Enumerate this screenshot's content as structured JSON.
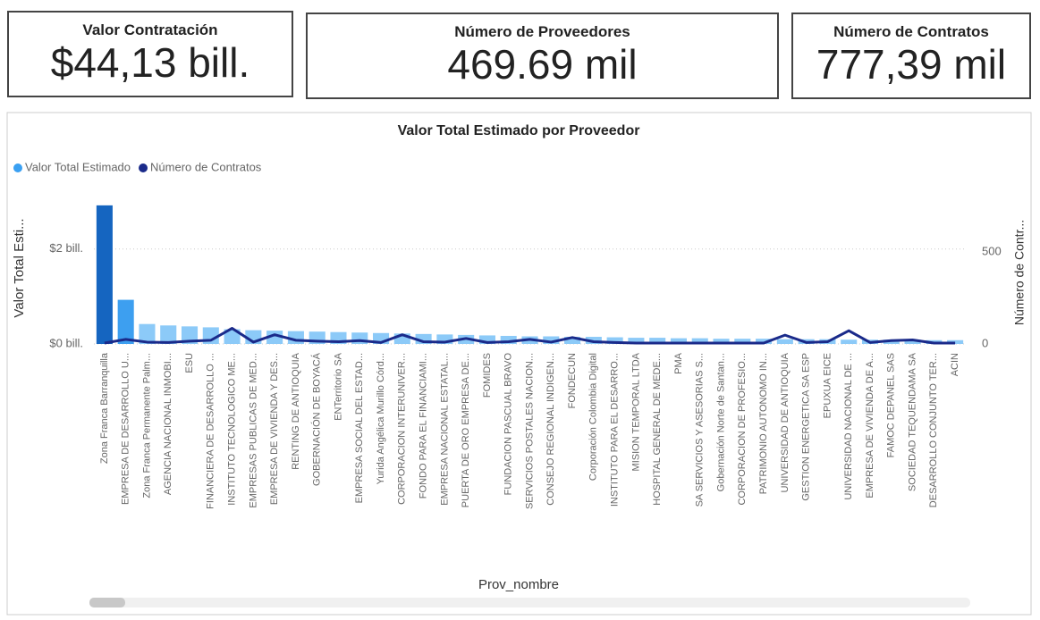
{
  "cards": [
    {
      "title": "Valor Contratación",
      "value": "$44,13 bill."
    },
    {
      "title": "Número de Proveedores",
      "value": "469.69 mil"
    },
    {
      "title": "Número de Contratos",
      "value": "777,39 mil"
    }
  ],
  "chart_data": {
    "type": "bar-line",
    "title": "Valor Total Estimado por Proveedor",
    "x_label": "Prov_nombre",
    "y_label": "Valor Total Esti...",
    "y2_label": "Número de Contr...",
    "categories": [
      "Zona Franca Barranquilla",
      "EMPRESA DE DESARROLLO U...",
      "Zona Franca Permanente Palm...",
      "AGENCIA NACIONAL INMOBI...",
      "ESU",
      "FINANCIERA DE DESARROLLO ...",
      "INSTITUTO TECNOLOGICO ME...",
      "EMPRESAS PUBLICAS DE MED...",
      "EMPRESA DE VIVIENDA Y DES...",
      "RENTING DE ANTIOQUIA",
      "GOBERNACIÓN DE BOYACÁ",
      "ENTerritorio SA",
      "EMPRESA SOCIAL DEL ESTAD...",
      "Yurida Angélica Murillo Córd...",
      "CORPORACION INTERUNIVER...",
      "FONDO PARA EL FINANCIAMI...",
      "EMPRESA NACIONAL ESTATAL...",
      "PUERTA DE ORO EMPRESA DE...",
      "FOMIDES",
      "FUNDACION PASCUAL BRAVO",
      "SERVICIOS POSTALES NACION...",
      "CONSEJO REGIONAL INDIGEN...",
      "FONDECUN",
      "Corporación Colombia Digital",
      "INSTITUTO PARA EL DESARRO...",
      "MISION TEMPORAL LTDA",
      "HOSPITAL GENERAL DE MEDE...",
      "PMA",
      "SA SERVICIOS Y ASESORIAS S...",
      "Gobernación Norte de Santan...",
      "CORPORACION DE PROFESIO...",
      "PATRIMONIO AUTONOMO IN...",
      "UNIVERSIDAD DE ANTIOQUIA",
      "GESTION ENERGETICA SA ESP",
      "EPUXUA EICE",
      "UNIVERSIDAD NACIONAL DE ...",
      "EMPRESA DE VIVIENDA DE A...",
      "FAMOC DEPANEL SAS",
      "SOCIEDAD TEQUENDAMA SA",
      "DESARROLLO CONJUNTO TER...",
      "ACIN"
    ],
    "series": [
      {
        "name": "Valor Total Estimado",
        "color": "#3aa0f2",
        "bar_colors": [
          "#1565c0",
          "#3d9ff0",
          "#8ccaf8",
          "#8ccaf8",
          "#8ccaf8",
          "#8ccaf8",
          "#8ccaf8",
          "#8ccaf8",
          "#8ccaf8",
          "#8ccaf8",
          "#8ccaf8",
          "#8ccaf8",
          "#8ccaf8",
          "#8ccaf8",
          "#8ccaf8",
          "#8ccaf8",
          "#8ccaf8",
          "#8ccaf8",
          "#8ccaf8",
          "#8ccaf8",
          "#8ccaf8",
          "#8ccaf8",
          "#8ccaf8",
          "#8ccaf8",
          "#8ccaf8",
          "#8ccaf8",
          "#8ccaf8",
          "#8ccaf8",
          "#8ccaf8",
          "#8ccaf8",
          "#8ccaf8",
          "#8ccaf8",
          "#8ccaf8",
          "#8ccaf8",
          "#8ccaf8",
          "#8ccaf8",
          "#8ccaf8",
          "#8ccaf8",
          "#8ccaf8",
          "#8ccaf8",
          "#8ccaf8"
        ],
        "values": [
          2.92,
          0.93,
          0.42,
          0.39,
          0.37,
          0.35,
          0.31,
          0.29,
          0.28,
          0.27,
          0.26,
          0.25,
          0.24,
          0.23,
          0.22,
          0.21,
          0.2,
          0.19,
          0.18,
          0.17,
          0.16,
          0.16,
          0.15,
          0.15,
          0.14,
          0.13,
          0.13,
          0.12,
          0.12,
          0.11,
          0.11,
          0.11,
          0.1,
          0.1,
          0.1,
          0.09,
          0.09,
          0.09,
          0.09,
          0.08,
          0.08
        ]
      },
      {
        "name": "Número de Contratos",
        "color": "#1a2a8a",
        "axis": "y2",
        "values": [
          5,
          25,
          10,
          8,
          15,
          20,
          85,
          10,
          50,
          20,
          15,
          12,
          18,
          8,
          50,
          12,
          10,
          30,
          8,
          12,
          25,
          10,
          35,
          12,
          8,
          5,
          5,
          5,
          5,
          5,
          5,
          5,
          48,
          8,
          12,
          72,
          8,
          18,
          22,
          5,
          5
        ]
      }
    ],
    "ylim": [
      0,
      3.2
    ],
    "yticks": [
      {
        "value": 0,
        "label": "$0 bill."
      },
      {
        "value": 2,
        "label": "$2 bill."
      }
    ],
    "y2lim": [
      0,
      825
    ],
    "y2ticks": [
      0,
      500
    ],
    "grid": true,
    "legend": "top-left"
  }
}
